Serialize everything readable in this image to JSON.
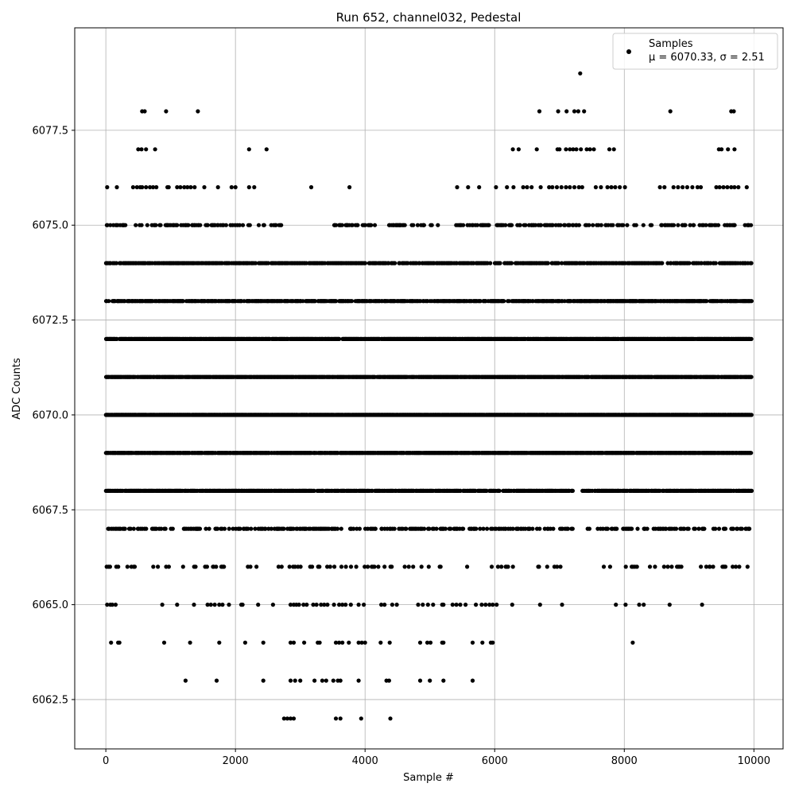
{
  "chart_data": {
    "type": "scatter",
    "title": "Run 652, channel032, Pedestal",
    "xlabel": "Sample #",
    "ylabel": "ADC Counts",
    "xlim": [
      -480,
      10450
    ],
    "ylim": [
      6061.2,
      6080.2
    ],
    "xticks": [
      0,
      2000,
      4000,
      6000,
      8000,
      10000
    ],
    "xtick_labels": [
      "0",
      "2000",
      "4000",
      "6000",
      "8000",
      "10000"
    ],
    "yticks": [
      6062.5,
      6065.0,
      6067.5,
      6070.0,
      6072.5,
      6075.0,
      6077.5
    ],
    "ytick_labels": [
      "6062.5",
      "6065.0",
      "6067.5",
      "6070.0",
      "6072.5",
      "6075.0",
      "6077.5"
    ],
    "grid": true,
    "legend": {
      "placement": "top-right",
      "entry_name": "Samples",
      "entry_stats": "μ = 6070.33, σ = 2.51"
    },
    "marker_color": "#000000",
    "n_samples": 10000,
    "levels": [
      {
        "y": 6062,
        "x": [
          2750,
          2800,
          2850,
          2900,
          3550,
          3620,
          3940,
          4390
        ]
      },
      {
        "y": 6063,
        "x": [
          1230,
          1710,
          2430,
          2850,
          2920,
          3000,
          3220,
          3340,
          3400,
          3510,
          3580,
          3620,
          3900,
          4330,
          4370,
          4850,
          5000,
          5210,
          5660
        ]
      },
      {
        "y": 6064,
        "x": [
          80,
          190,
          210,
          900,
          1300,
          1750,
          2150,
          2430,
          2850,
          2900,
          3060,
          3270,
          3300,
          3550,
          3600,
          3650,
          3750,
          3900,
          3950,
          4000,
          4240,
          4380,
          4850,
          4960,
          5010,
          5190,
          5210,
          5660,
          5810,
          5940,
          5970,
          8130
        ]
      },
      {
        "y": 6065,
        "x": [
          20,
          70,
          100,
          150,
          870,
          1100,
          1360,
          1570,
          1620,
          1680,
          1750,
          1800,
          1900,
          2090,
          2110,
          2350,
          2580,
          2850,
          2900,
          2940,
          2980,
          3050,
          3100,
          3200,
          3250,
          3320,
          3370,
          3420,
          3520,
          3600,
          3650,
          3700,
          3780,
          3900,
          3980,
          4250,
          4300,
          4420,
          4490,
          4820,
          4890,
          4970,
          5050,
          5190,
          5210,
          5350,
          5410,
          5470,
          5550,
          5710,
          5800,
          5860,
          5920,
          5970,
          6030,
          6270,
          6700,
          7040,
          7870,
          8020,
          8230,
          8300,
          8700,
          9200
        ]
      }
    ],
    "dense_levels": [
      {
        "y": 6066,
        "x_ranges": [
          [
            0,
            6350
          ],
          [
            6650,
            7050
          ],
          [
            7630,
            9960
          ]
        ],
        "density": 0.1
      },
      {
        "y": 6067,
        "x_ranges": [
          [
            0,
            7200
          ],
          [
            7400,
            9960
          ]
        ],
        "density": 0.32
      },
      {
        "y": 6068,
        "x_ranges": [
          [
            0,
            7200
          ],
          [
            7350,
            9960
          ]
        ],
        "density": 0.72
      },
      {
        "y": 6069,
        "x_ranges": [
          [
            0,
            9960
          ]
        ],
        "density": 0.9
      },
      {
        "y": 6070,
        "x_ranges": [
          [
            0,
            9960
          ]
        ],
        "density": 0.95
      },
      {
        "y": 6071,
        "x_ranges": [
          [
            0,
            9960
          ]
        ],
        "density": 0.92
      },
      {
        "y": 6072,
        "x_ranges": [
          [
            0,
            9960
          ]
        ],
        "density": 0.88
      },
      {
        "y": 6073,
        "x_ranges": [
          [
            0,
            9960
          ]
        ],
        "density": 0.7
      },
      {
        "y": 6074,
        "x_ranges": [
          [
            0,
            9960
          ]
        ],
        "density": 0.62
      },
      {
        "y": 6075,
        "x_ranges": [
          [
            0,
            2720
          ],
          [
            3520,
            4180
          ],
          [
            4350,
            5200
          ],
          [
            5400,
            9960
          ]
        ],
        "density": 0.3
      }
    ],
    "sparse_points": [
      {
        "y": 6076,
        "x": [
          20,
          170,
          420,
          480,
          530,
          560,
          620,
          680,
          730,
          780,
          950,
          970,
          1100,
          1150,
          1210,
          1260,
          1310,
          1370,
          1520,
          1730,
          1940,
          2000,
          2210,
          2290,
          3170,
          3760,
          5420,
          5590,
          5760,
          6020,
          6190,
          6290,
          6440,
          6500,
          6570,
          6710,
          6840,
          6890,
          6960,
          7030,
          7100,
          7160,
          7230,
          7300,
          7350,
          7560,
          7640,
          7740,
          7800,
          7860,
          7930,
          8010,
          8550,
          8620,
          8760,
          8830,
          8900,
          8970,
          9050,
          9130,
          9180,
          9420,
          9470,
          9530,
          9590,
          9650,
          9700,
          9760,
          9890
        ]
      },
      {
        "y": 6077,
        "x": [
          500,
          550,
          620,
          760,
          2210,
          2480,
          6280,
          6370,
          6650,
          6970,
          7000,
          7100,
          7160,
          7210,
          7260,
          7330,
          7420,
          7470,
          7530,
          7770,
          7840,
          9460,
          9500,
          9600,
          9700
        ]
      },
      {
        "y": 6078,
        "x": [
          560,
          600,
          930,
          1420,
          6690,
          6980,
          7110,
          7230,
          7290,
          7380,
          8710,
          9650,
          9690
        ]
      },
      {
        "y": 6079,
        "x": [
          7320
        ]
      }
    ]
  }
}
